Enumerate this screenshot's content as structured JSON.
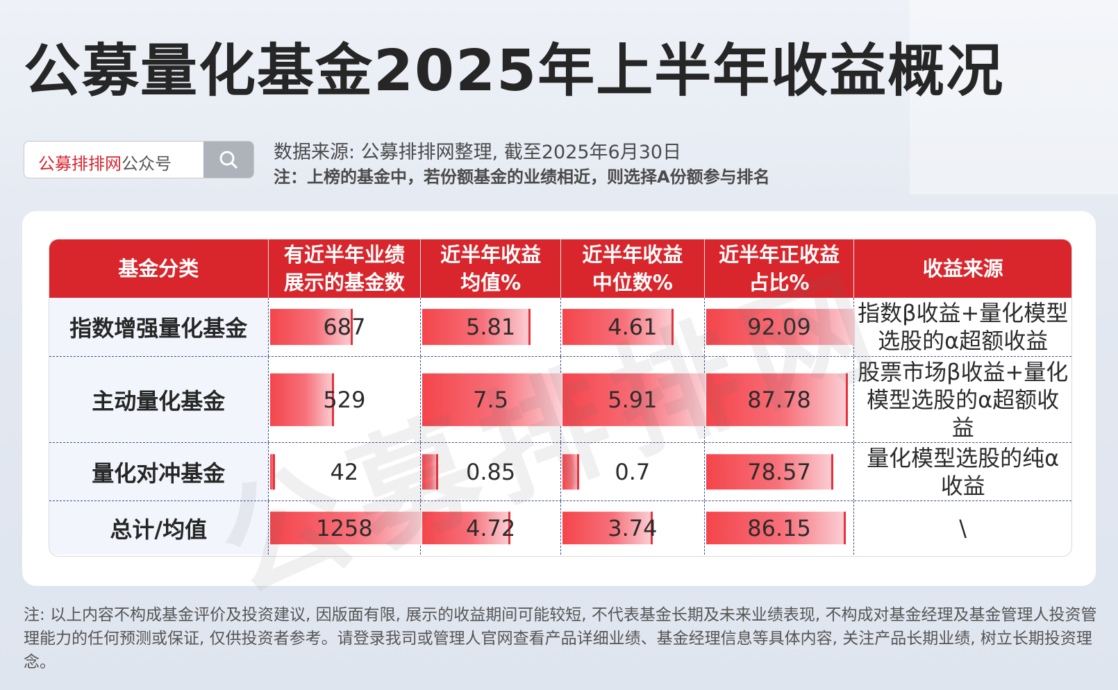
{
  "title": "公募量化基金2025年上半年收益概况",
  "search": {
    "brand": "公募排排网",
    "suffix": "公众号"
  },
  "source": "数据来源: 公募排排网整理, 截至2025年6月30日",
  "note_top": "注：上榜的基金中，若份额基金的业绩相近，则选择A份额参与排名",
  "table": {
    "headers": [
      "基金分类",
      "有近半年业绩\n展示的基金数",
      "近半年收益\n均值%",
      "近半年收益\n中位数%",
      "近半年正收益\n占比%",
      "收益来源"
    ],
    "rows": [
      {
        "category": "指数增强量化基金",
        "count": "687",
        "mean": "5.81",
        "median": "4.61",
        "positive": "92.09",
        "source": "指数β收益+量化模型选股的α超额收益"
      },
      {
        "category": "主动量化基金",
        "count": "529",
        "mean": "7.5",
        "median": "5.91",
        "positive": "87.78",
        "source": "股票市场β收益+量化模型选股的α超额收益"
      },
      {
        "category": "量化对冲基金",
        "count": "42",
        "mean": "0.85",
        "median": "0.7",
        "positive": "78.57",
        "source": "量化模型选股的纯α收益"
      },
      {
        "category": "总计/均值",
        "count": "1258",
        "mean": "4.72",
        "median": "3.74",
        "positive": "86.15",
        "source": "\\"
      }
    ]
  },
  "watermark": "公募排排网",
  "footer": "注: 以上内容不构成基金评价及投资建议, 因版面有限, 展示的收益期间可能较短, 不代表基金长期及未来业绩表现, 不构成对基金经理及基金管理人投资管理能力的任何预测或保证, 仅供投资者参考。请登录我司或管理人官网查看产品详细业绩、基金经理信息等具体内容, 关注产品长期业绩, 树立长期投资理念。",
  "colors": {
    "accent": "#d9262c",
    "bar": "#f4454b",
    "divider": "#3b4b8f"
  }
}
